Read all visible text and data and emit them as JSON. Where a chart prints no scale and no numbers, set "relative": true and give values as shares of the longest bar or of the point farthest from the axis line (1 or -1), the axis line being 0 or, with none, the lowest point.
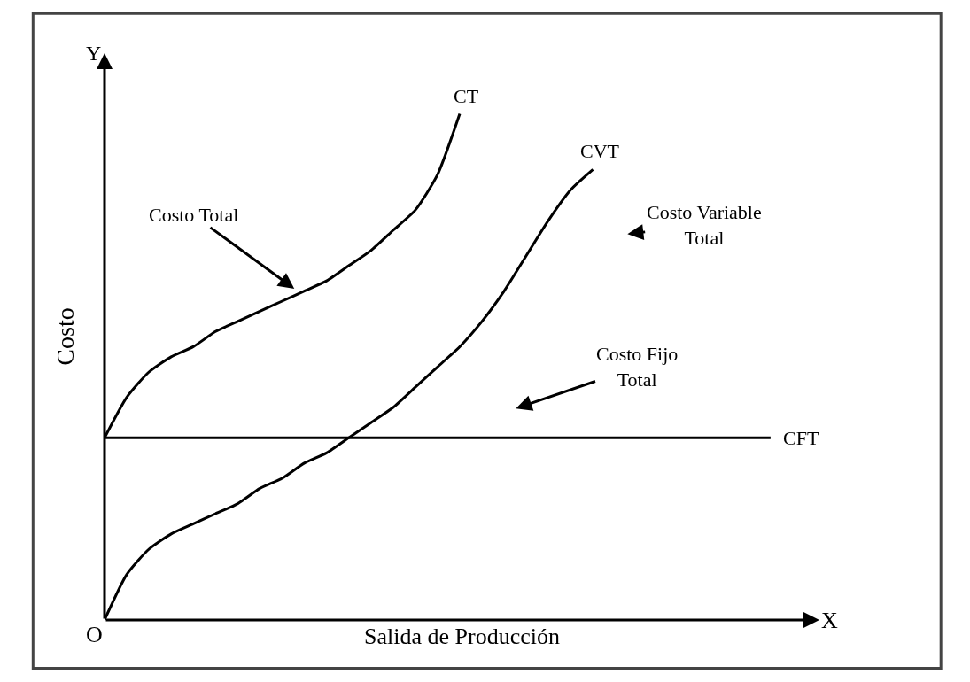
{
  "chart_data": {
    "type": "line",
    "relative": true,
    "xlabel": "Salida de Producción",
    "ylabel": "Costo",
    "categories": [
      null,
      null,
      null,
      null,
      null,
      null,
      null,
      null,
      null,
      null,
      null,
      null,
      null,
      null,
      null,
      null,
      null,
      null,
      null,
      null,
      null,
      null,
      null,
      null,
      null,
      null,
      null,
      null,
      null,
      null,
      null
    ],
    "series": [
      {
        "name": "CT",
        "color": "#000000",
        "values": [
          0.36,
          0.44,
          0.49,
          0.52,
          0.54,
          0.57,
          0.59,
          0.61,
          0.63,
          0.65,
          0.67,
          0.7,
          0.73,
          0.77,
          0.81,
          0.88,
          1.0,
          null,
          null,
          null,
          null,
          null,
          null,
          null,
          null,
          null,
          null,
          null,
          null,
          null,
          null
        ]
      },
      {
        "name": "CVT",
        "color": "#000000",
        "values": [
          0,
          0.09,
          0.14,
          0.17,
          0.19,
          0.21,
          0.23,
          0.26,
          0.28,
          0.31,
          0.33,
          0.36,
          0.39,
          0.42,
          0.46,
          0.5,
          0.54,
          0.59,
          0.65,
          0.72,
          0.79,
          0.85,
          0.89,
          null,
          null,
          null,
          null,
          null,
          null,
          null,
          null
        ]
      },
      {
        "name": "CFT",
        "color": "#000000",
        "values": [
          0.36,
          0.36,
          0.36,
          0.36,
          0.36,
          0.36,
          0.36,
          0.36,
          0.36,
          0.36,
          0.36,
          0.36,
          0.36,
          0.36,
          0.36,
          0.36,
          0.36,
          0.36,
          0.36,
          0.36,
          0.36,
          0.36,
          0.36,
          0.36,
          0.36,
          0.36,
          0.36,
          0.36,
          0.36,
          0.36,
          0.36
        ]
      }
    ],
    "annotations": [
      "Costo Total",
      "Costo Variable\nTotal",
      "Costo Fijo\nTotal",
      "Y",
      "X",
      "O"
    ],
    "legend": false,
    "marker": "none",
    "line_style": "solid"
  }
}
